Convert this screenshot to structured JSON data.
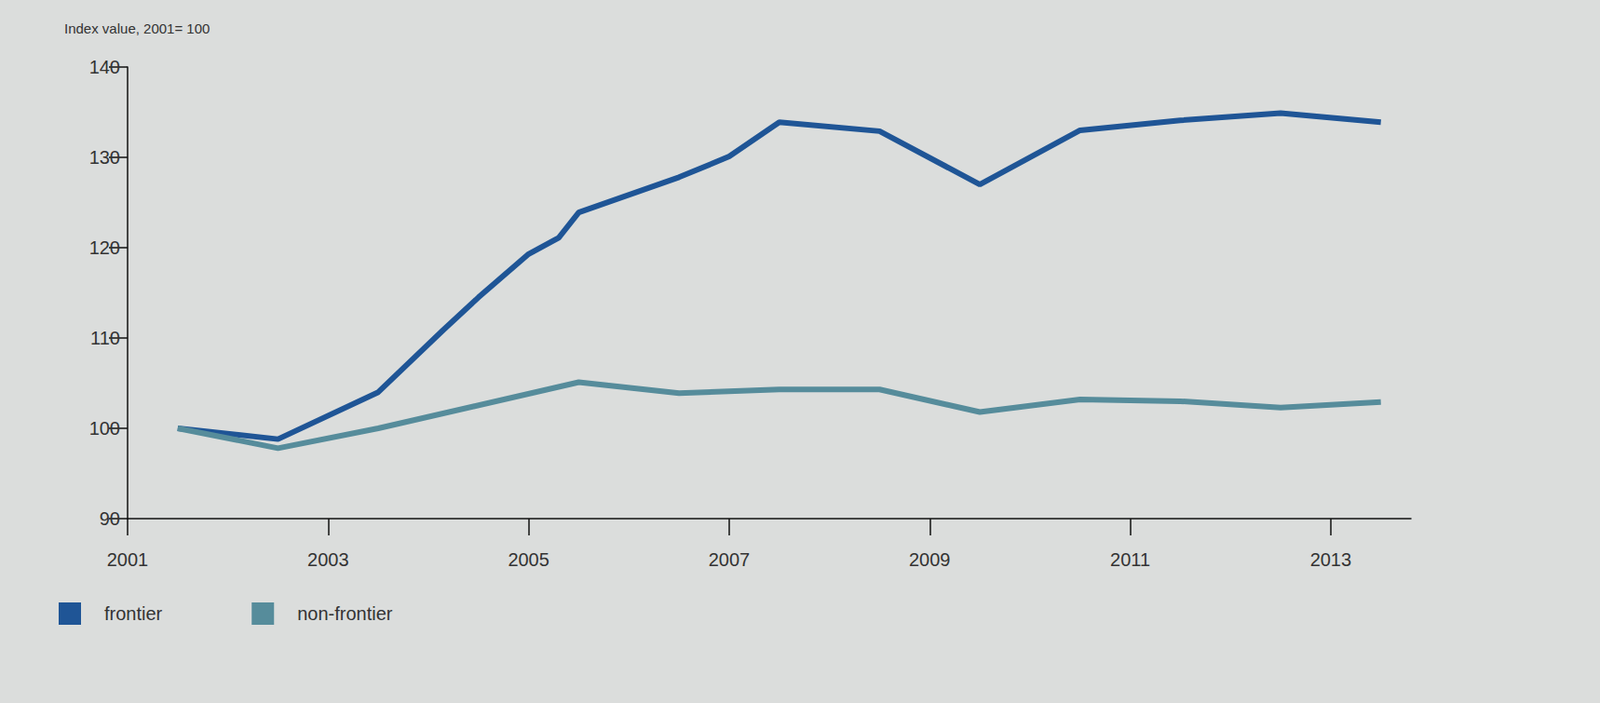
{
  "chart_data": {
    "type": "line",
    "y_label": "Index value, 2001= 100",
    "xlim": [
      2001,
      2013.8
    ],
    "xticks": [
      2001,
      2003,
      2005,
      2007,
      2009,
      2011,
      2013
    ],
    "ylim": [
      90,
      140
    ],
    "yticks": [
      90,
      100,
      110,
      120,
      130,
      140
    ],
    "grid": false,
    "legend": "bottom-left",
    "series": [
      {
        "name": "frontier",
        "color": "#1f5596",
        "x": [
          2001.5,
          2002.5,
          2003.5,
          2004.15,
          2004.5,
          2005.0,
          2005.3,
          2005.5,
          2006.5,
          2007.0,
          2007.5,
          2008.5,
          2009.5,
          2010.5,
          2011.5,
          2012.5,
          2013.5
        ],
        "values": [
          100,
          98.8,
          104,
          110.9,
          114.5,
          119.3,
          121.1,
          123.9,
          127.8,
          130.1,
          133.9,
          132.9,
          127,
          133,
          134.1,
          134.9,
          133.9
        ]
      },
      {
        "name": "non-frontier",
        "color": "#568c9b",
        "x": [
          2001.5,
          2002.5,
          2003.5,
          2005.5,
          2006.5,
          2007.5,
          2008.5,
          2009.5,
          2010.5,
          2011.5,
          2012.5,
          2013.5
        ],
        "values": [
          100,
          97.8,
          100,
          105.1,
          103.9,
          104.3,
          104.3,
          101.8,
          103.2,
          103,
          102.3,
          102.9
        ]
      }
    ]
  }
}
